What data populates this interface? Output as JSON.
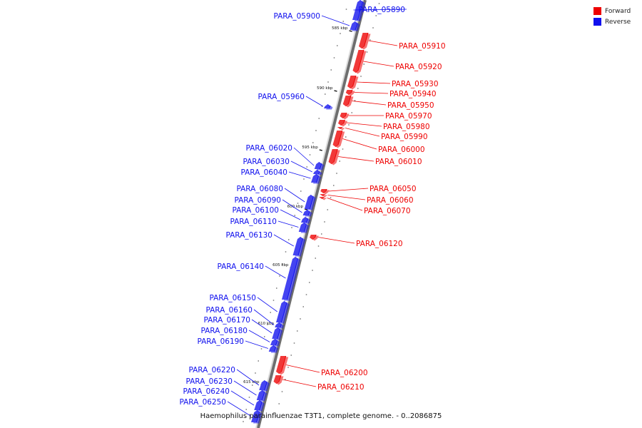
{
  "legend": {
    "forward": {
      "label": "Forward",
      "color": "#ee0000"
    },
    "reverse": {
      "label": "Reverse",
      "color": "#1010ee"
    }
  },
  "caption": "Haemophilus parainfluenzae T3T1, complete genome. - 0..2086875",
  "kbp_ticks": [
    "585 kbp",
    "590 kbp",
    "595 kbp",
    "600 kbp",
    "605 kbp",
    "610 kbp",
    "615 kbp"
  ],
  "genes": [
    {
      "id": "PARA_05890",
      "strand": "reverse"
    },
    {
      "id": "PARA_05900",
      "strand": "reverse"
    },
    {
      "id": "PARA_05910",
      "strand": "forward"
    },
    {
      "id": "PARA_05920",
      "strand": "forward"
    },
    {
      "id": "PARA_05930",
      "strand": "forward"
    },
    {
      "id": "PARA_05940",
      "strand": "forward"
    },
    {
      "id": "PARA_05950",
      "strand": "forward"
    },
    {
      "id": "PARA_05960",
      "strand": "reverse"
    },
    {
      "id": "PARA_05970",
      "strand": "forward"
    },
    {
      "id": "PARA_05980",
      "strand": "forward"
    },
    {
      "id": "PARA_05990",
      "strand": "forward"
    },
    {
      "id": "PARA_06000",
      "strand": "forward"
    },
    {
      "id": "PARA_06010",
      "strand": "forward"
    },
    {
      "id": "PARA_06020",
      "strand": "reverse"
    },
    {
      "id": "PARA_06030",
      "strand": "reverse"
    },
    {
      "id": "PARA_06040",
      "strand": "reverse"
    },
    {
      "id": "PARA_06050",
      "strand": "forward"
    },
    {
      "id": "PARA_06060",
      "strand": "forward"
    },
    {
      "id": "PARA_06070",
      "strand": "forward"
    },
    {
      "id": "PARA_06080",
      "strand": "reverse"
    },
    {
      "id": "PARA_06090",
      "strand": "reverse"
    },
    {
      "id": "PARA_06100",
      "strand": "reverse"
    },
    {
      "id": "PARA_06110",
      "strand": "reverse"
    },
    {
      "id": "PARA_06120",
      "strand": "forward"
    },
    {
      "id": "PARA_06130",
      "strand": "reverse"
    },
    {
      "id": "PARA_06140",
      "strand": "reverse"
    },
    {
      "id": "PARA_06150",
      "strand": "reverse"
    },
    {
      "id": "PARA_06160",
      "strand": "reverse"
    },
    {
      "id": "PARA_06170",
      "strand": "reverse"
    },
    {
      "id": "PARA_06180",
      "strand": "reverse"
    },
    {
      "id": "PARA_06190",
      "strand": "reverse"
    },
    {
      "id": "PARA_06200",
      "strand": "forward"
    },
    {
      "id": "PARA_06210",
      "strand": "forward"
    },
    {
      "id": "PARA_06220",
      "strand": "reverse"
    },
    {
      "id": "PARA_06230",
      "strand": "reverse"
    },
    {
      "id": "PARA_06240",
      "strand": "reverse"
    },
    {
      "id": "PARA_06250",
      "strand": "reverse"
    }
  ]
}
